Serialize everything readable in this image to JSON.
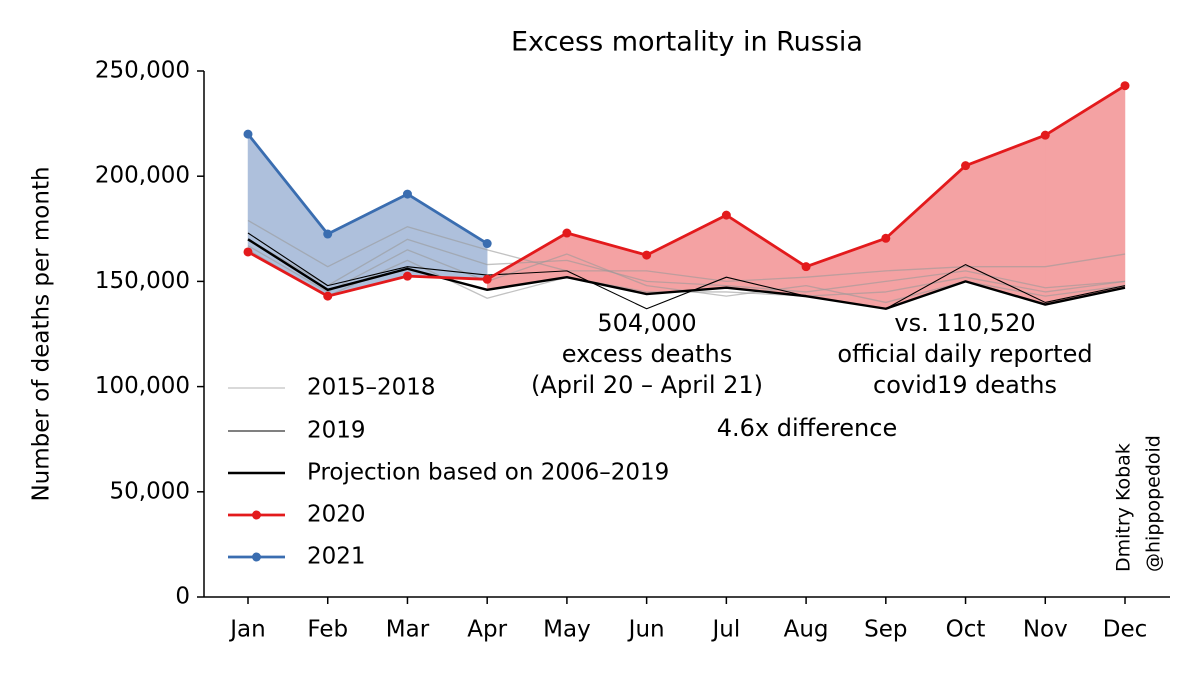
{
  "chart_data": {
    "type": "line",
    "title": "Excess mortality in Russia",
    "y_label": "Number of deaths per month",
    "categories": [
      "Jan",
      "Feb",
      "Mar",
      "Apr",
      "May",
      "Jun",
      "Jul",
      "Aug",
      "Sep",
      "Oct",
      "Nov",
      "Dec"
    ],
    "ylim": [
      0,
      250000
    ],
    "yticks": [
      0,
      {
        "value": 50000,
        "label": "50,000"
      },
      {
        "value": 100000,
        "label": "100,000"
      },
      {
        "value": 150000,
        "label": "150,000"
      },
      {
        "value": 200000,
        "label": "200,000"
      },
      {
        "value": 250000,
        "label": "250,000"
      }
    ],
    "legend": "lower left",
    "series": [
      {
        "name": "2015–2018",
        "color": "#999999",
        "values": [
          [
            179000,
            157000,
            176000,
            165000,
            155000,
            155000,
            150000,
            152000,
            155000,
            157000,
            157000,
            163000
          ],
          [
            170000,
            148000,
            170000,
            158000,
            160000,
            150000,
            148000,
            145000,
            150000,
            155000,
            147000,
            150000
          ],
          [
            167000,
            145000,
            165000,
            150000,
            163000,
            148000,
            143000,
            148000,
            140000,
            150000,
            143000,
            148000
          ],
          [
            165000,
            143000,
            160000,
            142000,
            152000,
            145000,
            145000,
            143000,
            145000,
            152000,
            145000,
            150000
          ]
        ]
      },
      {
        "name": "2019",
        "color": "#000000",
        "values": [
          173000,
          148000,
          157000,
          153000,
          155000,
          137000,
          152000,
          143000,
          137000,
          158000,
          140000,
          148000
        ]
      },
      {
        "name": "Projection based on 2006–2019",
        "color": "#000000",
        "values": [
          170000,
          146000,
          156000,
          146000,
          152000,
          144000,
          147000,
          143000,
          137000,
          150000,
          139000,
          147000
        ]
      },
      {
        "name": "2020",
        "color": "#e31a1c",
        "fill_color": "#f4a2a3",
        "fill_base": "Projection based on 2006–2019",
        "values": [
          164000,
          143000,
          152500,
          151000,
          173000,
          162500,
          181500,
          157000,
          170500,
          205000,
          219500,
          243000
        ]
      },
      {
        "name": "2021",
        "color": "#3a6db0",
        "fill_color": "#aec0dc",
        "fill_base": "2020",
        "values": [
          220000,
          172500,
          191500,
          168000,
          null,
          null,
          null,
          null,
          null,
          null,
          null,
          null
        ]
      }
    ],
    "annotations": [
      {
        "text": [
          "504,000",
          "excess deaths",
          "(April 20 – April 21)"
        ],
        "color": "#ff0000"
      },
      {
        "text": [
          "vs. 110,520",
          "official daily reported",
          "covid19 deaths"
        ],
        "color": "#000000"
      },
      {
        "text": [
          "4.6x difference"
        ],
        "color": "#0000aa"
      }
    ],
    "signature": [
      "Dmitry Kobak",
      "@hippopedoid"
    ]
  }
}
